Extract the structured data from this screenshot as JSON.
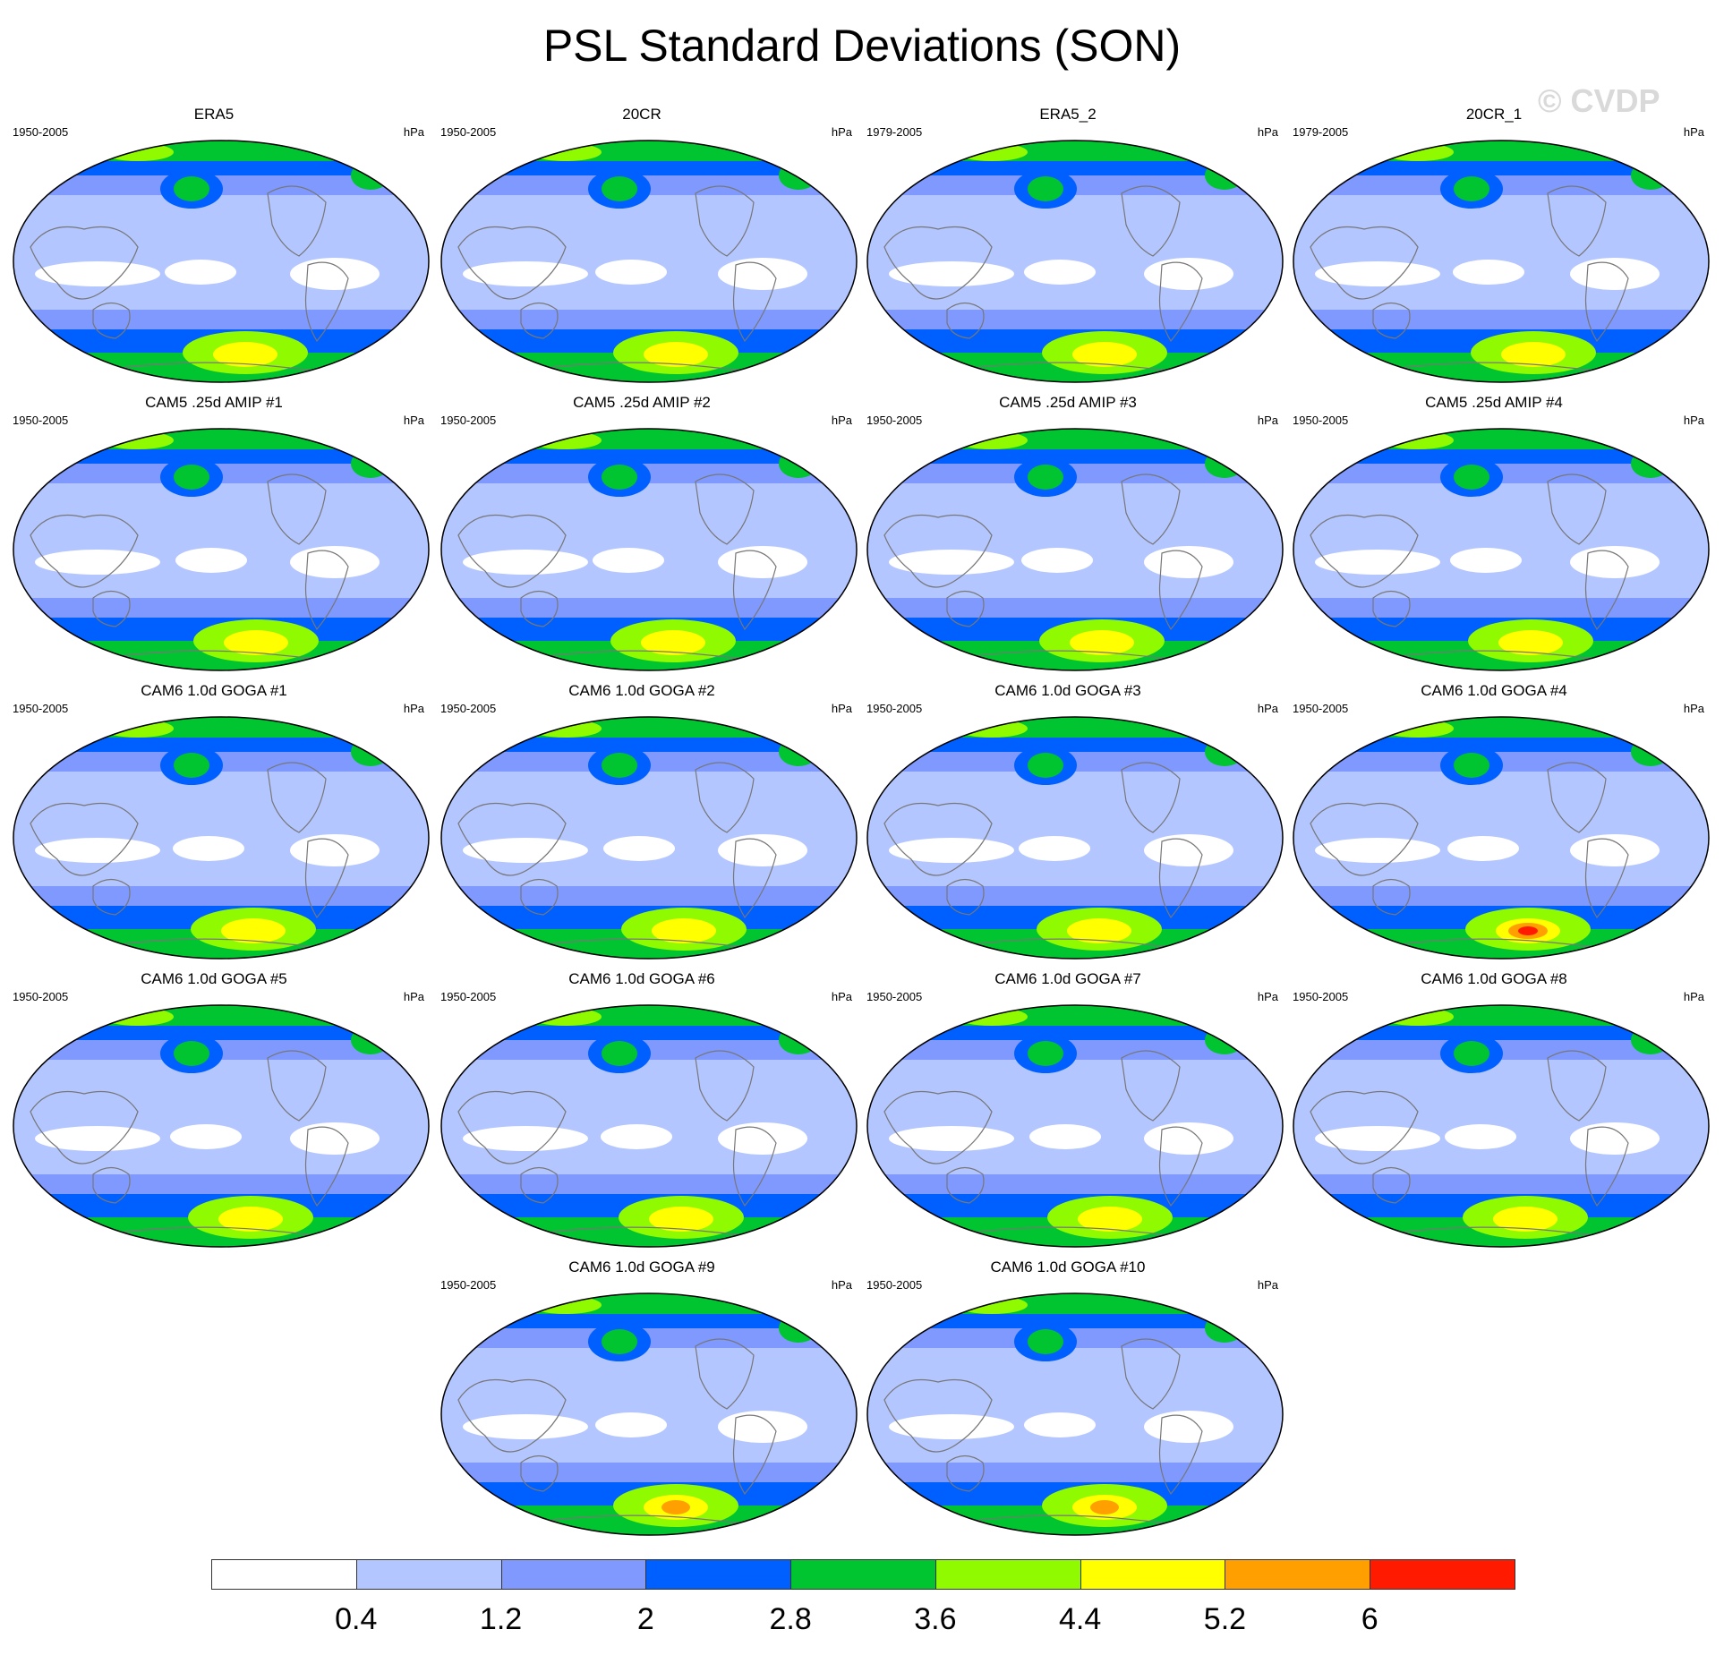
{
  "title": "PSL Standard Deviations (SON)",
  "watermark": "© CVDP",
  "units": "hPa",
  "panels": [
    {
      "name": "ERA5",
      "period": "1950-2005"
    },
    {
      "name": "20CR",
      "period": "1950-2005"
    },
    {
      "name": "ERA5_2",
      "period": "1979-2005"
    },
    {
      "name": "20CR_1",
      "period": "1979-2005"
    },
    {
      "name": "CAM5 .25d AMIP #1",
      "period": "1950-2005"
    },
    {
      "name": "CAM5 .25d AMIP #2",
      "period": "1950-2005"
    },
    {
      "name": "CAM5 .25d AMIP #3",
      "period": "1950-2005"
    },
    {
      "name": "CAM5 .25d AMIP #4",
      "period": "1950-2005"
    },
    {
      "name": "CAM6 1.0d GOGA #1",
      "period": "1950-2005"
    },
    {
      "name": "CAM6 1.0d GOGA #2",
      "period": "1950-2005"
    },
    {
      "name": "CAM6 1.0d GOGA #3",
      "period": "1950-2005"
    },
    {
      "name": "CAM6 1.0d GOGA #4",
      "period": "1950-2005"
    },
    {
      "name": "CAM6 1.0d GOGA #5",
      "period": "1950-2005"
    },
    {
      "name": "CAM6 1.0d GOGA #6",
      "period": "1950-2005"
    },
    {
      "name": "CAM6 1.0d GOGA #7",
      "period": "1950-2005"
    },
    {
      "name": "CAM6 1.0d GOGA #8",
      "period": "1950-2005"
    },
    {
      "name": "CAM6 1.0d GOGA #9",
      "period": "1950-2005"
    },
    {
      "name": "CAM6 1.0d GOGA #10",
      "period": "1950-2005"
    }
  ],
  "colorbar": {
    "labels": [
      "0.4",
      "1.2",
      "2",
      "2.8",
      "3.6",
      "4.4",
      "5.2",
      "6"
    ],
    "colors": [
      "#ffffff",
      "#b4c6ff",
      "#7f99ff",
      "#005fff",
      "#00c430",
      "#8ffa00",
      "#ffff00",
      "#ffa000",
      "#ff1a00"
    ]
  }
}
